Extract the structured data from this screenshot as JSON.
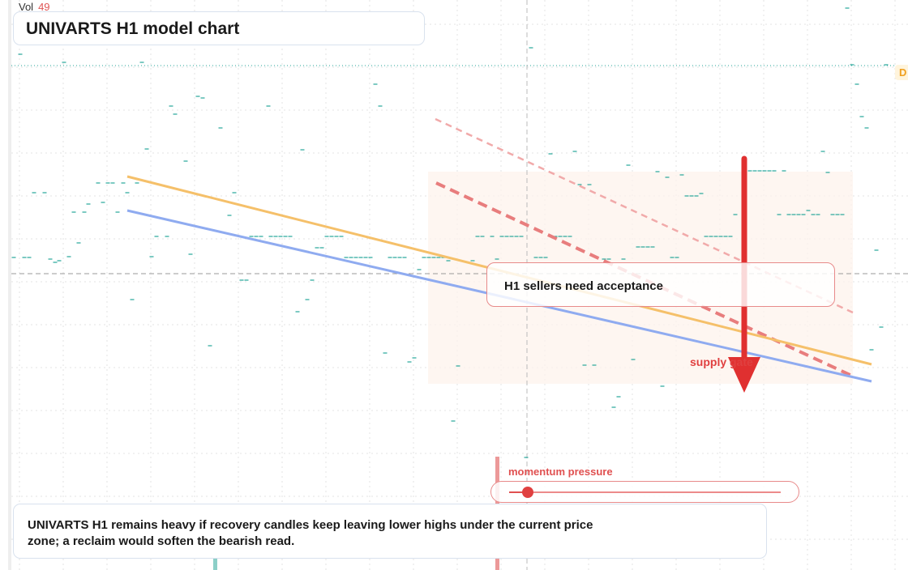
{
  "header": {
    "vol_label": "Vol",
    "vol_value": "49",
    "title": "UNIVARTS H1 model chart",
    "edge_badge": "D"
  },
  "annotations": {
    "acceptance": "H1 sellers need acceptance",
    "supply": "supply gate",
    "momentum_label": "momentum pressure",
    "momentum_value": 0.07
  },
  "note": "UNIVARTS H1 remains heavy if recovery candles keep leaving lower highs under the current price zone; a reclaim would soften the bearish read.",
  "colors": {
    "candle": "#26a69a",
    "orange_line": "#f5c06a",
    "blue_line": "#8fabf0",
    "red": "#e03030",
    "zone": "#fdf3ec"
  },
  "chart_data": {
    "type": "candlestick",
    "title": "UNIVARTS H1 model chart",
    "xlabel": "",
    "ylabel": "",
    "grid": true,
    "trendlines": [
      "orange",
      "blue",
      "red dashed",
      "pink dashed"
    ],
    "marks": [
      {
        "type": "arrow",
        "direction": "down",
        "color": "red"
      },
      {
        "type": "zone",
        "label": "supply gate"
      }
    ]
  }
}
